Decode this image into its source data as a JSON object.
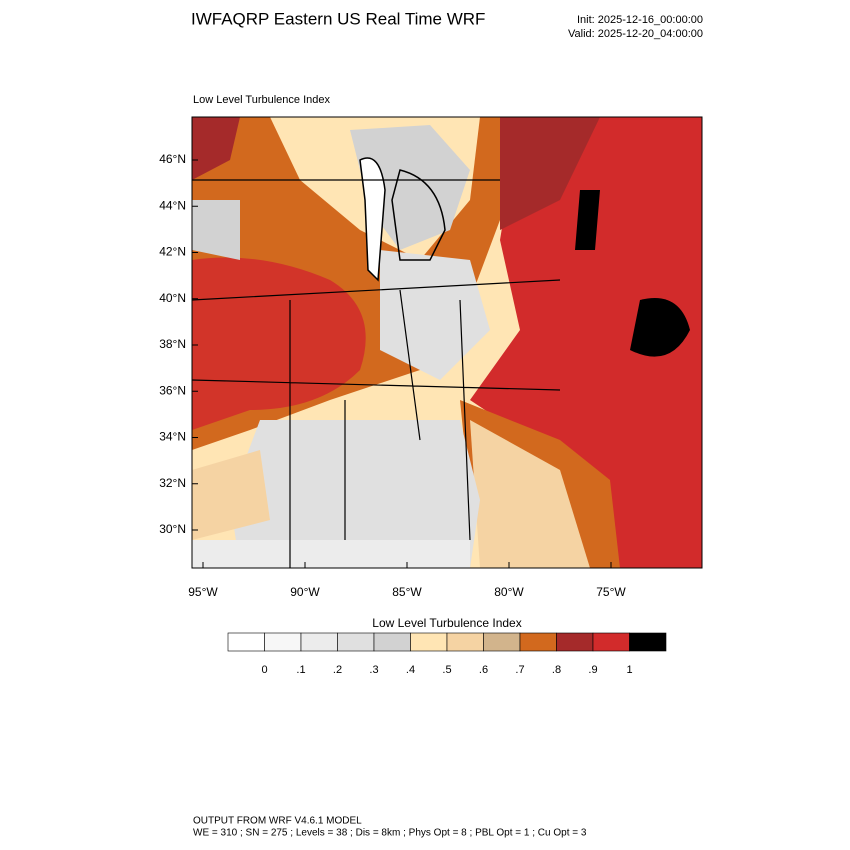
{
  "header": {
    "title": "IWFAQRP Eastern US Real Time WRF",
    "init": "Init: 2025-12-16_00:00:00",
    "valid": "Valid: 2025-12-20_04:00:00"
  },
  "map": {
    "title": "Low Level Turbulence Index",
    "lat_labels": [
      "46°N",
      "44°N",
      "42°N",
      "40°N",
      "38°N",
      "36°N",
      "34°N",
      "32°N",
      "30°N"
    ],
    "lon_labels": [
      "95°W",
      "90°W",
      "85°W",
      "80°W",
      "75°W"
    ]
  },
  "colorbar": {
    "title": "Low Level Turbulence Index",
    "colors": [
      "#ffffff",
      "#f7f7f7",
      "#ececec",
      "#e0e0e0",
      "#d2d2d2",
      "#ffe5b4",
      "#f5d3a3",
      "#d2b48c",
      "#d2691e",
      "#a52a2a",
      "#d22b2b",
      "#000000"
    ],
    "labels": [
      "0",
      ".1",
      ".2",
      ".3",
      ".4",
      ".5",
      ".6",
      ".7",
      ".8",
      ".9",
      "1"
    ]
  },
  "footer": {
    "line1": "OUTPUT FROM WRF V4.6.1 MODEL",
    "line2": "WE = 310 ; SN = 275 ; Levels = 38 ; Dis = 8km ; Phys Opt = 8 ; PBL Opt = 1 ; Cu Opt = 3"
  }
}
